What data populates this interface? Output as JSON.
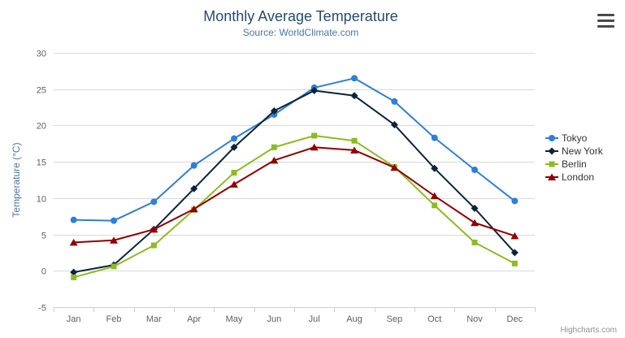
{
  "chart_data": {
    "type": "line",
    "title": "Monthly Average Temperature",
    "subtitle": "Source: WorldClimate.com",
    "categories": [
      "Jan",
      "Feb",
      "Mar",
      "Apr",
      "May",
      "Jun",
      "Jul",
      "Aug",
      "Sep",
      "Oct",
      "Nov",
      "Dec"
    ],
    "xlabel": "",
    "ylabel": "Temperature (°C)",
    "ylim": [
      -5,
      30
    ],
    "ytick_step": 5,
    "grid": true,
    "legend_position": "right",
    "series": [
      {
        "name": "Tokyo",
        "color": "#2f7ed8",
        "marker": "circle",
        "values": [
          7.0,
          6.9,
          9.5,
          14.5,
          18.2,
          21.5,
          25.2,
          26.5,
          23.3,
          18.3,
          13.9,
          9.6
        ]
      },
      {
        "name": "New York",
        "color": "#0d233a",
        "marker": "diamond",
        "values": [
          -0.2,
          0.8,
          5.7,
          11.3,
          17.0,
          22.0,
          24.8,
          24.1,
          20.1,
          14.1,
          8.6,
          2.5
        ]
      },
      {
        "name": "Berlin",
        "color": "#8bbc21",
        "marker": "square",
        "values": [
          -0.9,
          0.6,
          3.5,
          8.4,
          13.5,
          17.0,
          18.6,
          17.9,
          14.3,
          9.0,
          3.9,
          1.0
        ]
      },
      {
        "name": "London",
        "color": "#910000",
        "marker": "triangle",
        "values": [
          3.9,
          4.2,
          5.7,
          8.5,
          11.9,
          15.2,
          17.0,
          16.6,
          14.2,
          10.3,
          6.6,
          4.8
        ]
      }
    ],
    "axis_colors": {
      "grid_line": "#d8d8d8",
      "axis_line": "#c0d0e0",
      "tick": "#c0d0e0",
      "label": "#606060",
      "axis_title": "#4d759e"
    }
  },
  "credits": "Highcharts.com",
  "export_menu": {
    "icon": "hamburger-icon"
  }
}
